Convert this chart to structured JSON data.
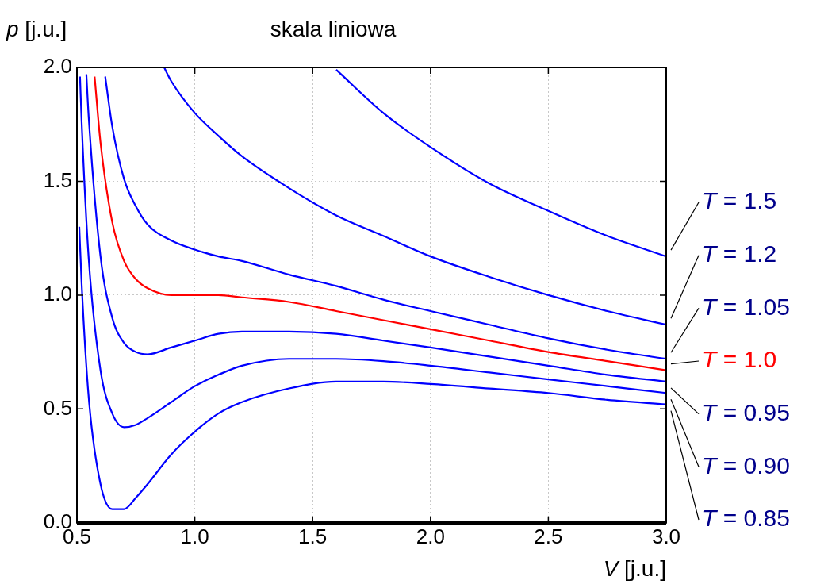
{
  "chart_data": {
    "type": "line",
    "title": "skala liniowa",
    "xlabel": "V [j.u.]",
    "ylabel": "p [j.u.]",
    "xlim": [
      0.5,
      3.0
    ],
    "xticks": [
      {
        "value": 0.5,
        "label": "0.5"
      },
      {
        "value": 1.0,
        "label": "1.0"
      },
      {
        "value": 1.5,
        "label": "1.5"
      },
      {
        "value": 2.0,
        "label": "2.0"
      },
      {
        "value": 2.5,
        "label": "2.5"
      },
      {
        "value": 3.0,
        "label": "3.0"
      }
    ],
    "ylim": [
      0.0,
      2.0
    ],
    "yticks": [
      {
        "value": 0.0,
        "label": "0.0"
      },
      {
        "value": 0.5,
        "label": "0.5"
      },
      {
        "value": 1.0,
        "label": "1.0"
      },
      {
        "value": 1.5,
        "label": "1.5"
      },
      {
        "value": 2.0,
        "label": "2.0"
      }
    ],
    "grid": true,
    "marker": "none",
    "line_style": "solid",
    "series": [
      {
        "name": "T = 1.5",
        "color": "#0000ff",
        "x": [
          1.6,
          1.8,
          2.0,
          2.25,
          2.5,
          2.75,
          3.0
        ],
        "values": [
          1.99,
          1.8,
          1.65,
          1.49,
          1.37,
          1.26,
          1.17
        ]
      },
      {
        "name": "T = 1.2",
        "color": "#0000ff",
        "x": [
          0.87,
          0.9,
          1.0,
          1.1,
          1.2,
          1.4,
          1.6,
          1.8,
          2.0,
          2.25,
          2.5,
          2.75,
          3.0
        ],
        "values": [
          2.0,
          1.94,
          1.8,
          1.7,
          1.61,
          1.47,
          1.35,
          1.26,
          1.17,
          1.08,
          1.0,
          0.93,
          0.87
        ]
      },
      {
        "name": "T = 1.05",
        "color": "#0000ff",
        "x": [
          0.62,
          0.65,
          0.7,
          0.75,
          0.8,
          0.9,
          1.0,
          1.1,
          1.2,
          1.4,
          1.6,
          1.8,
          2.0,
          2.25,
          2.5,
          2.75,
          3.0
        ],
        "values": [
          1.96,
          1.74,
          1.51,
          1.39,
          1.31,
          1.24,
          1.2,
          1.17,
          1.15,
          1.09,
          1.04,
          0.98,
          0.93,
          0.87,
          0.81,
          0.76,
          0.72
        ]
      },
      {
        "name": "T = 1.0",
        "color": "#ff0000",
        "x": [
          0.575,
          0.6,
          0.65,
          0.7,
          0.75,
          0.8,
          0.9,
          1.0,
          1.1,
          1.2,
          1.4,
          1.6,
          1.8,
          2.0,
          2.25,
          2.5,
          2.75,
          3.0
        ],
        "values": [
          1.96,
          1.67,
          1.32,
          1.15,
          1.07,
          1.03,
          1.0,
          1.0,
          1.0,
          0.99,
          0.97,
          0.93,
          0.89,
          0.85,
          0.8,
          0.75,
          0.71,
          0.67
        ]
      },
      {
        "name": "T = 0.95",
        "color": "#0000ff",
        "x": [
          0.54,
          0.55,
          0.6,
          0.65,
          0.7,
          0.75,
          0.8,
          0.9,
          1.0,
          1.1,
          1.2,
          1.4,
          1.6,
          1.8,
          2.0,
          2.25,
          2.5,
          2.75,
          3.0
        ],
        "values": [
          1.97,
          1.78,
          1.17,
          0.9,
          0.79,
          0.75,
          0.74,
          0.77,
          0.8,
          0.83,
          0.84,
          0.84,
          0.83,
          0.8,
          0.77,
          0.73,
          0.69,
          0.65,
          0.62
        ]
      },
      {
        "name": "T = 0.90",
        "color": "#0000ff",
        "x": [
          0.513,
          0.52,
          0.55,
          0.6,
          0.65,
          0.7,
          0.75,
          0.8,
          0.9,
          1.0,
          1.1,
          1.2,
          1.4,
          1.6,
          1.8,
          2.0,
          2.25,
          2.5,
          2.75,
          3.0
        ],
        "values": [
          1.96,
          1.76,
          1.16,
          0.67,
          0.48,
          0.42,
          0.43,
          0.46,
          0.53,
          0.6,
          0.65,
          0.69,
          0.72,
          0.72,
          0.71,
          0.69,
          0.66,
          0.63,
          0.6,
          0.57
        ]
      },
      {
        "name": "T = 0.85",
        "color": "#0000ff",
        "x": [
          0.51,
          0.52,
          0.55,
          0.6,
          0.65,
          0.7,
          0.75,
          0.8,
          0.9,
          1.0,
          1.1,
          1.2,
          1.4,
          1.6,
          1.8,
          2.0,
          2.25,
          2.5,
          2.75,
          3.0
        ],
        "values": [
          1.3,
          1.05,
          0.55,
          0.17,
          0.06,
          0.06,
          0.11,
          0.17,
          0.3,
          0.4,
          0.48,
          0.53,
          0.59,
          0.62,
          0.62,
          0.61,
          0.59,
          0.57,
          0.54,
          0.52
        ]
      }
    ]
  }
}
